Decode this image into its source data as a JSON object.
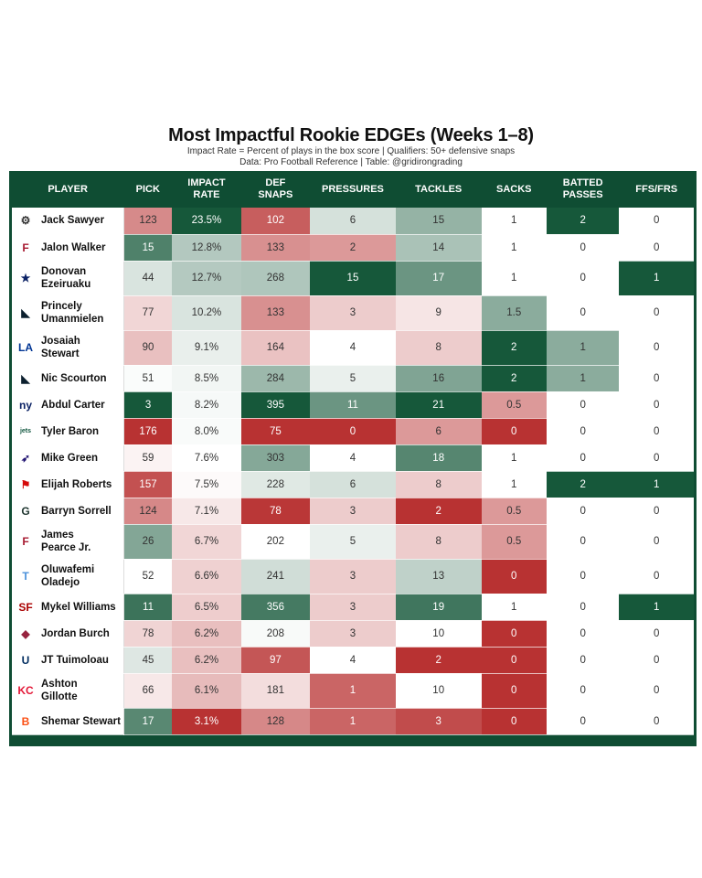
{
  "header": {
    "title": "Most Impactful Rookie EDGEs (Weeks 1–8)",
    "subtitle1": "Impact Rate = Percent of plays in the box score | Qualifiers: 50+ defensive snaps",
    "subtitle2": "Data: Pro Football Reference | Table: @gridirongrading"
  },
  "columns": [
    "PLAYER",
    "PICK",
    "IMPACT RATE",
    "DEF SNAPS",
    "PRESSURES",
    "TACKLES",
    "SACKS",
    "BATTED PASSES",
    "FFS/FRS"
  ],
  "colors": {
    "header_bg": "#0f4d33",
    "dark_green": "#16583a",
    "dark_red": "#b83232",
    "white": "#ffffff"
  },
  "rows": [
    {
      "team_icon": "steelers-logo",
      "player": "Jack Sawyer",
      "pick": "123",
      "impact": "23.5%",
      "snaps": "102",
      "pressures": "6",
      "tackles": "15",
      "sacks": "1",
      "batted": "2",
      "ffs": "0"
    },
    {
      "team_icon": "falcons-logo",
      "player": "Jalon Walker",
      "pick": "15",
      "impact": "12.8%",
      "snaps": "133",
      "pressures": "2",
      "tackles": "14",
      "sacks": "1",
      "batted": "0",
      "ffs": "0"
    },
    {
      "team_icon": "cowboys-logo",
      "player": "Donovan Ezeiruaku",
      "pick": "44",
      "impact": "12.7%",
      "snaps": "268",
      "pressures": "15",
      "tackles": "17",
      "sacks": "1",
      "batted": "0",
      "ffs": "1"
    },
    {
      "team_icon": "panthers-logo",
      "player": "Princely Umanmielen",
      "pick": "77",
      "impact": "10.2%",
      "snaps": "133",
      "pressures": "3",
      "tackles": "9",
      "sacks": "1.5",
      "batted": "0",
      "ffs": "0"
    },
    {
      "team_icon": "rams-logo",
      "player": "Josaiah Stewart",
      "pick": "90",
      "impact": "9.1%",
      "snaps": "164",
      "pressures": "4",
      "tackles": "8",
      "sacks": "2",
      "batted": "1",
      "ffs": "0"
    },
    {
      "team_icon": "panthers-logo",
      "player": "Nic Scourton",
      "pick": "51",
      "impact": "8.5%",
      "snaps": "284",
      "pressures": "5",
      "tackles": "16",
      "sacks": "2",
      "batted": "1",
      "ffs": "0"
    },
    {
      "team_icon": "giants-logo",
      "player": "Abdul Carter",
      "pick": "3",
      "impact": "8.2%",
      "snaps": "395",
      "pressures": "11",
      "tackles": "21",
      "sacks": "0.5",
      "batted": "0",
      "ffs": "0"
    },
    {
      "team_icon": "jets-logo",
      "player": "Tyler Baron",
      "pick": "176",
      "impact": "8.0%",
      "snaps": "75",
      "pressures": "0",
      "tackles": "6",
      "sacks": "0",
      "batted": "0",
      "ffs": "0"
    },
    {
      "team_icon": "ravens-logo",
      "player": "Mike Green",
      "pick": "59",
      "impact": "7.6%",
      "snaps": "303",
      "pressures": "4",
      "tackles": "18",
      "sacks": "1",
      "batted": "0",
      "ffs": "0"
    },
    {
      "team_icon": "buccaneers-logo",
      "player": "Elijah Roberts",
      "pick": "157",
      "impact": "7.5%",
      "snaps": "228",
      "pressures": "6",
      "tackles": "8",
      "sacks": "1",
      "batted": "2",
      "ffs": "1"
    },
    {
      "team_icon": "packers-logo",
      "player": "Barryn Sorrell",
      "pick": "124",
      "impact": "7.1%",
      "snaps": "78",
      "pressures": "3",
      "tackles": "2",
      "sacks": "0.5",
      "batted": "0",
      "ffs": "0"
    },
    {
      "team_icon": "falcons-logo",
      "player": "James Pearce Jr.",
      "pick": "26",
      "impact": "6.7%",
      "snaps": "202",
      "pressures": "5",
      "tackles": "8",
      "sacks": "0.5",
      "batted": "0",
      "ffs": "0"
    },
    {
      "team_icon": "titans-logo",
      "player": "Oluwafemi Oladejo",
      "pick": "52",
      "impact": "6.6%",
      "snaps": "241",
      "pressures": "3",
      "tackles": "13",
      "sacks": "0",
      "batted": "0",
      "ffs": "0"
    },
    {
      "team_icon": "49ers-logo",
      "player": "Mykel Williams",
      "pick": "11",
      "impact": "6.5%",
      "snaps": "356",
      "pressures": "3",
      "tackles": "19",
      "sacks": "1",
      "batted": "0",
      "ffs": "1"
    },
    {
      "team_icon": "cardinals-logo",
      "player": "Jordan Burch",
      "pick": "78",
      "impact": "6.2%",
      "snaps": "208",
      "pressures": "3",
      "tackles": "10",
      "sacks": "0",
      "batted": "0",
      "ffs": "0"
    },
    {
      "team_icon": "colts-logo",
      "player": "JT Tuimoloau",
      "pick": "45",
      "impact": "6.2%",
      "snaps": "97",
      "pressures": "4",
      "tackles": "2",
      "sacks": "0",
      "batted": "0",
      "ffs": "0"
    },
    {
      "team_icon": "chiefs-logo",
      "player": "Ashton Gillotte",
      "pick": "66",
      "impact": "6.1%",
      "snaps": "181",
      "pressures": "1",
      "tackles": "10",
      "sacks": "0",
      "batted": "0",
      "ffs": "0"
    },
    {
      "team_icon": "bengals-logo",
      "player": "Shemar Stewart",
      "pick": "17",
      "impact": "3.1%",
      "snaps": "128",
      "pressures": "1",
      "tackles": "3",
      "sacks": "0",
      "batted": "0",
      "ffs": "0"
    }
  ],
  "chart_data": {
    "type": "table",
    "title": "Most Impactful Rookie EDGEs (Weeks 1–8)",
    "subtitle": "Impact Rate = Percent of plays in the box score | Qualifiers: 50+ defensive snaps",
    "source": "Data: Pro Football Reference | Table: @gridirongrading",
    "columns": [
      "Player",
      "Pick",
      "Impact Rate",
      "Def Snaps",
      "Pressures",
      "Tackles",
      "Sacks",
      "Batted Passes",
      "FFs/FRs"
    ],
    "rows": [
      [
        "Jack Sawyer",
        123,
        23.5,
        102,
        6,
        15,
        1,
        2,
        0
      ],
      [
        "Jalon Walker",
        15,
        12.8,
        133,
        2,
        14,
        1,
        0,
        0
      ],
      [
        "Donovan Ezeiruaku",
        44,
        12.7,
        268,
        15,
        17,
        1,
        0,
        1
      ],
      [
        "Princely Umanmielen",
        77,
        10.2,
        133,
        3,
        9,
        1.5,
        0,
        0
      ],
      [
        "Josaiah Stewart",
        90,
        9.1,
        164,
        4,
        8,
        2,
        1,
        0
      ],
      [
        "Nic Scourton",
        51,
        8.5,
        284,
        5,
        16,
        2,
        1,
        0
      ],
      [
        "Abdul Carter",
        3,
        8.2,
        395,
        11,
        21,
        0.5,
        0,
        0
      ],
      [
        "Tyler Baron",
        176,
        8.0,
        75,
        0,
        6,
        0,
        0,
        0
      ],
      [
        "Mike Green",
        59,
        7.6,
        303,
        4,
        18,
        1,
        0,
        0
      ],
      [
        "Elijah Roberts",
        157,
        7.5,
        228,
        6,
        8,
        1,
        2,
        1
      ],
      [
        "Barryn Sorrell",
        124,
        7.1,
        78,
        3,
        2,
        0.5,
        0,
        0
      ],
      [
        "James Pearce Jr.",
        26,
        6.7,
        202,
        5,
        8,
        0.5,
        0,
        0
      ],
      [
        "Oluwafemi Oladejo",
        52,
        6.6,
        241,
        3,
        13,
        0,
        0,
        0
      ],
      [
        "Mykel Williams",
        11,
        6.5,
        356,
        3,
        19,
        1,
        0,
        1
      ],
      [
        "Jordan Burch",
        78,
        6.2,
        208,
        3,
        10,
        0,
        0,
        0
      ],
      [
        "JT Tuimoloau",
        45,
        6.2,
        97,
        4,
        2,
        0,
        0,
        0
      ],
      [
        "Ashton Gillotte",
        66,
        6.1,
        181,
        1,
        10,
        0,
        0,
        0
      ],
      [
        "Shemar Stewart",
        17,
        3.1,
        128,
        1,
        3,
        0,
        0,
        0
      ]
    ]
  }
}
